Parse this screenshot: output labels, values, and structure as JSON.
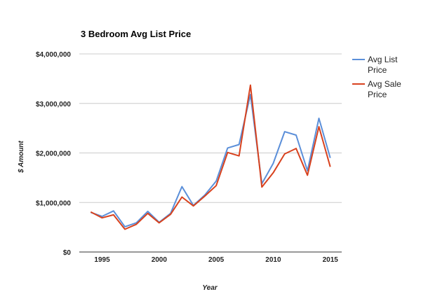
{
  "chart_data": {
    "type": "line",
    "title": "3 Bedroom Avg List Price",
    "xlabel": "Year",
    "ylabel": "$ Amount",
    "x": [
      1994,
      1995,
      1996,
      1997,
      1998,
      1999,
      2000,
      2001,
      2002,
      2003,
      2004,
      2005,
      2006,
      2007,
      2008,
      2009,
      2010,
      2011,
      2012,
      2013,
      2014,
      2015
    ],
    "xlim": [
      1993,
      2016
    ],
    "ylim": [
      0,
      4000000
    ],
    "x_ticks": [
      1995,
      2000,
      2005,
      2010,
      2015
    ],
    "x_tick_labels": [
      "1995",
      "2000",
      "2005",
      "2010",
      "2015"
    ],
    "y_ticks": [
      0,
      1000000,
      2000000,
      3000000,
      4000000
    ],
    "y_tick_labels": [
      "$0",
      "$1,000,000",
      "$2,000,000",
      "$3,000,000",
      "$4,000,000"
    ],
    "grid": true,
    "legend_position": "right",
    "series": [
      {
        "name_lines": [
          "Avg List",
          "Price"
        ],
        "color": "#5b8fd9",
        "values": [
          800000,
          720000,
          830000,
          510000,
          590000,
          820000,
          600000,
          780000,
          1320000,
          940000,
          1150000,
          1430000,
          2100000,
          2170000,
          3180000,
          1380000,
          1790000,
          2430000,
          2360000,
          1640000,
          2700000,
          1900000
        ]
      },
      {
        "name_lines": [
          "Avg Sale",
          "Price"
        ],
        "color": "#d8421e",
        "values": [
          810000,
          690000,
          750000,
          460000,
          560000,
          780000,
          590000,
          760000,
          1110000,
          930000,
          1130000,
          1340000,
          2010000,
          1940000,
          3370000,
          1310000,
          1600000,
          1980000,
          2090000,
          1550000,
          2530000,
          1720000
        ]
      }
    ]
  }
}
